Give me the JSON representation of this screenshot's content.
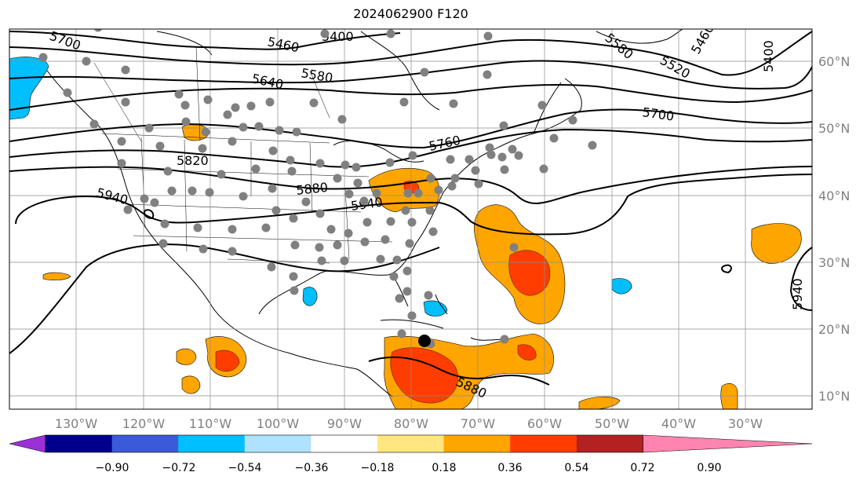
{
  "title": "2024062900 F120",
  "lat_labels": [
    "60°N",
    "50°N",
    "40°N",
    "30°N",
    "20°N",
    "10°N"
  ],
  "lon_labels": [
    "130°W",
    "120°W",
    "110°W",
    "100°W",
    "90°W",
    "80°W",
    "70°W",
    "60°W",
    "50°W",
    "40°W",
    "30°W"
  ],
  "contour_labels": [
    "5700",
    "5460",
    "5400",
    "5460",
    "5580",
    "5520",
    "5400",
    "5640",
    "5580",
    "5700",
    "5760",
    "5820",
    "5880",
    "5940",
    "5940",
    "5940",
    "5880"
  ],
  "colorbar": {
    "colors": [
      "#9b30d6",
      "#00008b",
      "#3b5bd6",
      "#00bfff",
      "#aee2ff",
      "#ffffff",
      "#ffe680",
      "#ffa500",
      "#ff3d00",
      "#b22222",
      "#ff85b0"
    ],
    "ticks": [
      "−0.90",
      "−0.72",
      "−0.54",
      "−0.36",
      "−0.18",
      "0.18",
      "0.36",
      "0.54",
      "0.72",
      "0.90"
    ]
  },
  "colors": {
    "positive_mid": "#ffa500",
    "positive_high": "#ff3d00",
    "negative": "#00bfff",
    "station": "#808080"
  },
  "hurricane_marker": "black-dot"
}
